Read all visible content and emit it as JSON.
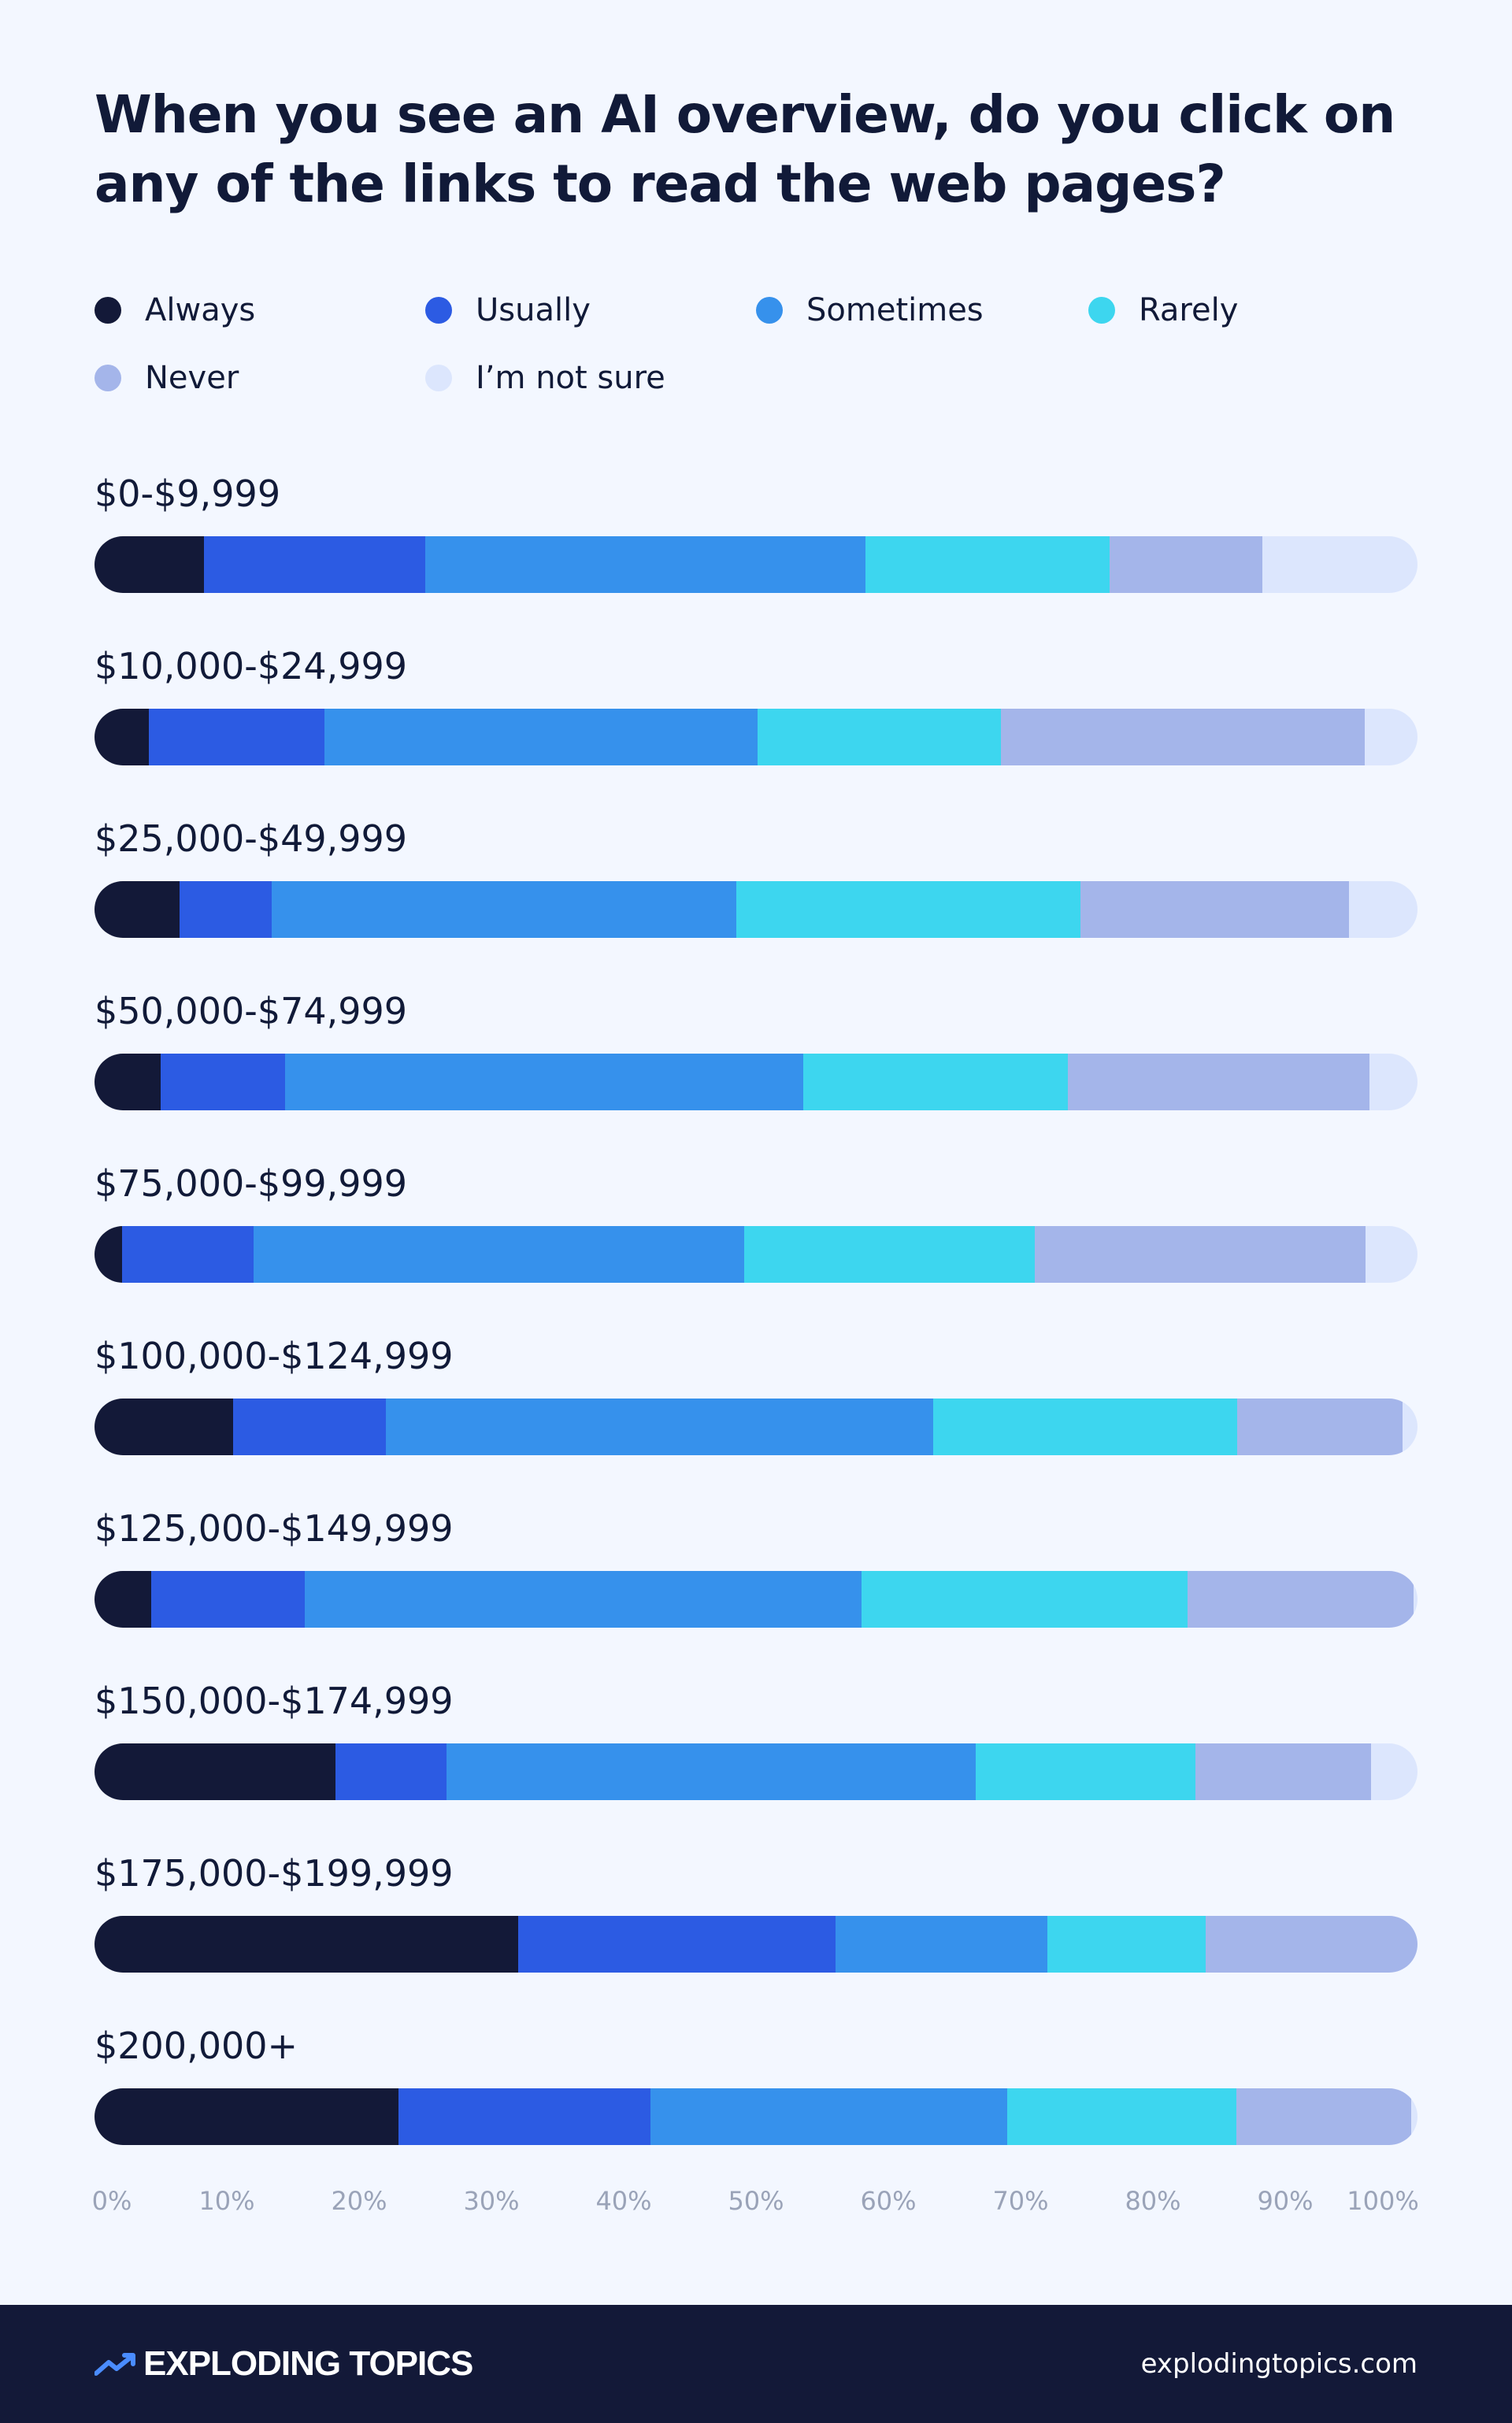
{
  "chart_data": {
    "type": "bar",
    "orientation": "horizontal",
    "stacked": true,
    "title": "When you see an AI overview, do you click on any of the links to read the web pages?",
    "xlabel": "",
    "ylabel": "",
    "xlim": [
      0,
      100
    ],
    "unit": "%",
    "grid": false,
    "legend_position": "top",
    "x_ticks": [
      "0%",
      "10%",
      "20%",
      "30%",
      "40%",
      "50%",
      "60%",
      "70%",
      "80%",
      "90%",
      "100%"
    ],
    "categories": [
      "$0-$9,999",
      "$10,000-$24,999",
      "$25,000-$49,999",
      "$50,000-$74,999",
      "$75,000-$99,999",
      "$100,000-$124,999",
      "$125,000-$149,999",
      "$150,000-$174,999",
      "$175,000-$199,999",
      "$200,000+"
    ],
    "series": [
      {
        "name": "Always",
        "color": "#131938",
        "values": [
          8.3,
          4.1,
          6.4,
          5.0,
          2.1,
          10.5,
          4.3,
          18.2,
          32.0,
          23.0
        ]
      },
      {
        "name": "Usually",
        "color": "#2c5be3",
        "values": [
          16.7,
          13.3,
          7.0,
          9.4,
          9.9,
          11.5,
          11.6,
          8.4,
          24.0,
          19.0
        ]
      },
      {
        "name": "Sometimes",
        "color": "#3691ec",
        "values": [
          33.3,
          32.7,
          35.1,
          39.2,
          37.1,
          41.4,
          42.1,
          40.0,
          16.0,
          27.0
        ]
      },
      {
        "name": "Rarely",
        "color": "#3dd6ef",
        "values": [
          18.4,
          18.4,
          26.0,
          20.0,
          22.0,
          23.0,
          24.6,
          16.6,
          12.0,
          17.3
        ]
      },
      {
        "name": "Never",
        "color": "#a4b5ea",
        "values": [
          11.6,
          27.5,
          20.3,
          22.8,
          25.0,
          12.5,
          17.1,
          13.3,
          16.0,
          13.2
        ]
      },
      {
        "name": "I’m not sure",
        "color": "#dce6fd",
        "values": [
          11.7,
          4.0,
          5.2,
          3.6,
          3.9,
          1.1,
          0.3,
          3.5,
          0.0,
          0.5
        ]
      }
    ]
  },
  "footer": {
    "brand": "EXPLODING TOPICS",
    "url": "explodingtopics.com"
  }
}
